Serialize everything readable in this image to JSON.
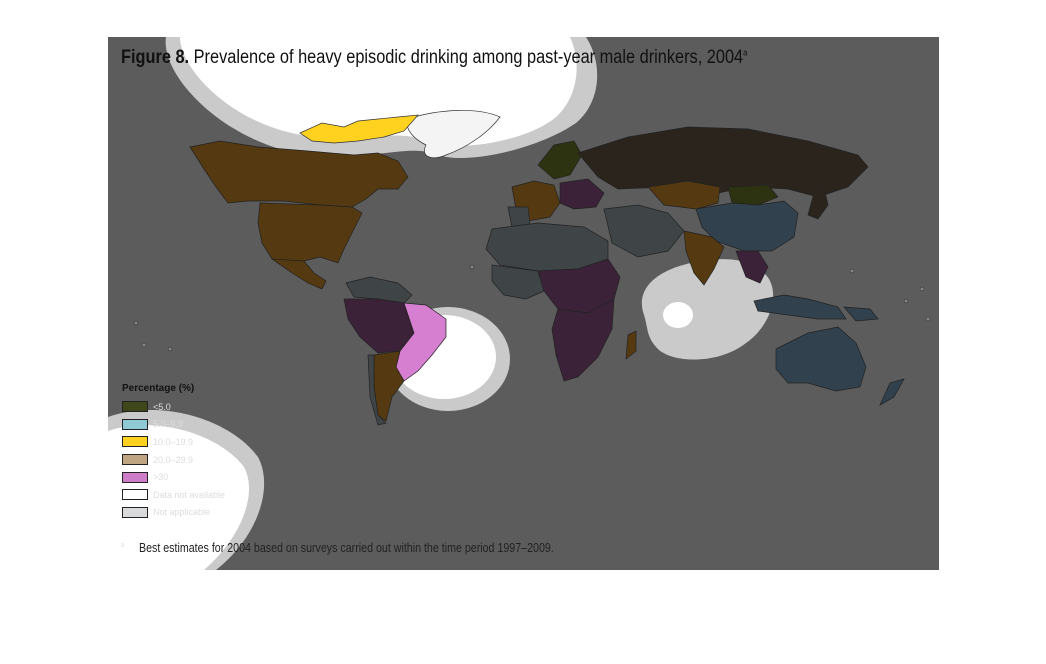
{
  "title": {
    "figure_label": "Figure 8.",
    "text": "Prevalence of heavy episodic drinking among past-year male drinkers, 2004",
    "superscript": "a"
  },
  "legend": {
    "title": "Percentage (%)",
    "items": [
      {
        "label": "<5.0",
        "color": "#3d4719"
      },
      {
        "label": "5.0–9.9",
        "color": "#8ec9d4"
      },
      {
        "label": "10.0–19.9",
        "color": "#ffd21f"
      },
      {
        "label": "20.0–29.9",
        "color": "#bfa582"
      },
      {
        "label": ">30",
        "color": "#cf7cc8"
      },
      {
        "label": "Data not available",
        "color": "#ffffff"
      },
      {
        "label": "Not applicable",
        "color": "#d9dadc"
      }
    ]
  },
  "footnote": {
    "marker": "a",
    "text": "Best estimates for 2004 based on surveys carried out within the time period 1997–2009."
  },
  "colors": {
    "overlay_background": "#5c5c5c",
    "dim_brown": "#553910",
    "dim_purple": "#3b2238",
    "dim_olive": "#2d3210",
    "dim_slate": "#31414d",
    "dim_gray": "#3f4447",
    "dark_brown": "#2a241d",
    "bright_pink": "#d67ed0",
    "highlight_white": "#ffffff"
  }
}
